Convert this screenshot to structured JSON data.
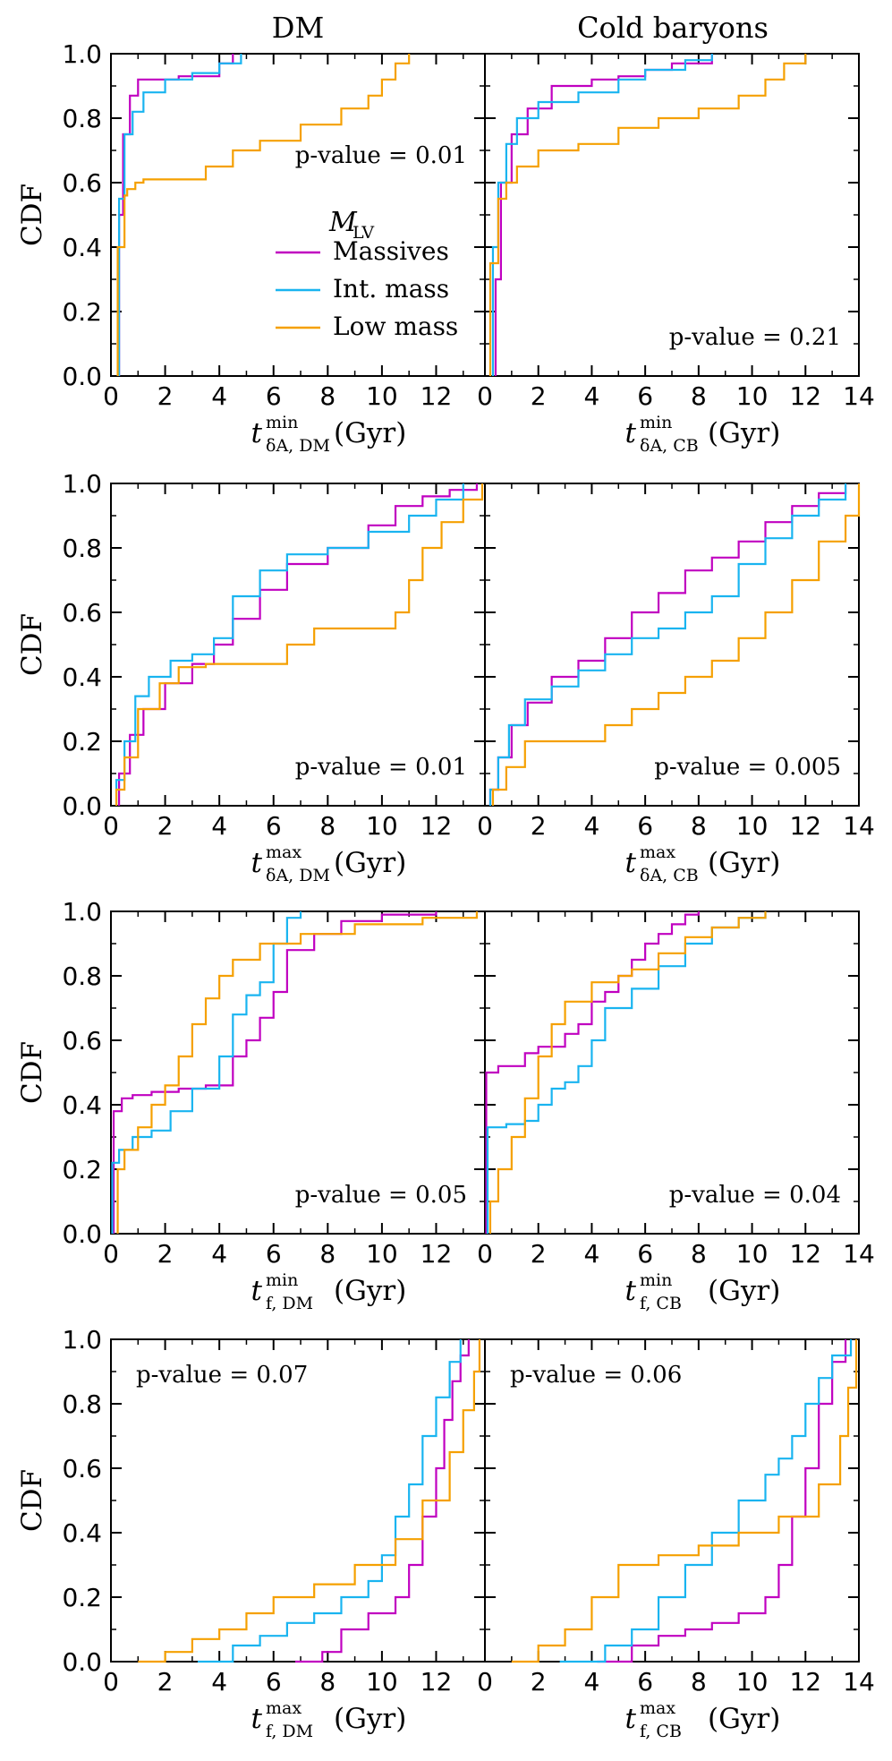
{
  "column_titles": [
    "DM",
    "Cold baryons"
  ],
  "legend": {
    "title": "M",
    "title_sub": "LV",
    "entries": [
      {
        "label": "Massives",
        "color": "#c000c0"
      },
      {
        "label": "Int. mass",
        "color": "#19b4f0"
      },
      {
        "label": "Low mass",
        "color": "#f5a000"
      }
    ]
  },
  "y_ticks": [
    "0.0",
    "0.2",
    "0.4",
    "0.6",
    "0.8",
    "1.0"
  ],
  "x_ticks_left": [
    "0",
    "2",
    "4",
    "6",
    "8",
    "10",
    "12"
  ],
  "x_ticks_right": [
    "0",
    "2",
    "4",
    "6",
    "8",
    "10",
    "12",
    "14"
  ],
  "chart_data": [
    {
      "type": "line",
      "ylabel": "CDF",
      "xlabel": {
        "base": "t",
        "sup": "min",
        "sub": "δA, DM",
        "unit": "(Gyr)"
      },
      "xlim": [
        0,
        13.8
      ],
      "ylim": [
        0,
        1
      ],
      "p_value": "p-value = 0.01",
      "p_pos": "upper-right-mid",
      "series": [
        {
          "name": "Massives",
          "x": [
            0.3,
            0.45,
            0.7,
            1.0,
            1.5,
            2.5,
            4.0,
            4.5
          ],
          "y": [
            0.5,
            0.75,
            0.87,
            0.92,
            0.92,
            0.93,
            0.97,
            1.0
          ]
        },
        {
          "name": "Int. mass",
          "x": [
            0.3,
            0.5,
            0.8,
            1.2,
            2.0,
            3.0,
            4.0,
            4.8
          ],
          "y": [
            0.55,
            0.75,
            0.82,
            0.88,
            0.92,
            0.94,
            0.97,
            1.0
          ]
        },
        {
          "name": "Low mass",
          "x": [
            0.25,
            0.5,
            0.6,
            0.9,
            1.2,
            3.5,
            4.5,
            5.5,
            7.0,
            8.5,
            9.5,
            10.0,
            10.5,
            11.0
          ],
          "y": [
            0.4,
            0.56,
            0.58,
            0.6,
            0.61,
            0.65,
            0.7,
            0.73,
            0.78,
            0.83,
            0.87,
            0.92,
            0.97,
            1.0
          ]
        }
      ]
    },
    {
      "type": "line",
      "ylabel": "",
      "xlabel": {
        "base": "t",
        "sup": "min",
        "sub": "δA, CB",
        "unit": "(Gyr)"
      },
      "xlim": [
        0,
        14
      ],
      "ylim": [
        0,
        1
      ],
      "p_value": "p-value = 0.21",
      "p_pos": "lower-right",
      "series": [
        {
          "name": "Massives",
          "x": [
            0.4,
            0.6,
            1.0,
            1.6,
            2.5,
            4.0,
            5.0,
            6.0,
            7.0,
            8.5
          ],
          "y": [
            0.3,
            0.6,
            0.75,
            0.83,
            0.9,
            0.92,
            0.93,
            0.95,
            0.97,
            1.0
          ]
        },
        {
          "name": "Int. mass",
          "x": [
            0.3,
            0.5,
            0.8,
            1.2,
            2.0,
            3.5,
            5.0,
            6.0,
            7.5,
            8.5
          ],
          "y": [
            0.4,
            0.6,
            0.72,
            0.8,
            0.85,
            0.88,
            0.92,
            0.95,
            0.98,
            1.0
          ]
        },
        {
          "name": "Low mass",
          "x": [
            0.2,
            0.5,
            0.8,
            1.2,
            2.0,
            3.5,
            5.0,
            6.5,
            8.0,
            9.5,
            10.5,
            11.2,
            12.0
          ],
          "y": [
            0.35,
            0.55,
            0.6,
            0.65,
            0.7,
            0.72,
            0.77,
            0.8,
            0.83,
            0.87,
            0.92,
            0.97,
            1.0
          ]
        }
      ]
    },
    {
      "type": "line",
      "ylabel": "CDF",
      "xlabel": {
        "base": "t",
        "sup": "max",
        "sub": "δA, DM",
        "unit": "(Gyr)"
      },
      "xlim": [
        0,
        13.8
      ],
      "ylim": [
        0,
        1
      ],
      "p_value": "p-value = 0.01",
      "p_pos": "lower-right",
      "series": [
        {
          "name": "Massives",
          "x": [
            0.3,
            0.7,
            1.2,
            2.0,
            3.0,
            3.8,
            4.5,
            5.5,
            6.5,
            8.0,
            9.5,
            10.5,
            11.5,
            12.5,
            13.5
          ],
          "y": [
            0.1,
            0.22,
            0.3,
            0.38,
            0.44,
            0.5,
            0.58,
            0.67,
            0.75,
            0.8,
            0.87,
            0.93,
            0.96,
            0.98,
            1.0
          ]
        },
        {
          "name": "Int. mass",
          "x": [
            0.2,
            0.5,
            0.9,
            1.4,
            2.2,
            3.0,
            3.8,
            4.5,
            5.5,
            6.5,
            8.0,
            9.5,
            11.0,
            12.0,
            13.0
          ],
          "y": [
            0.08,
            0.2,
            0.34,
            0.4,
            0.45,
            0.47,
            0.52,
            0.65,
            0.73,
            0.78,
            0.8,
            0.85,
            0.9,
            0.95,
            1.0
          ]
        },
        {
          "name": "Low mass",
          "x": [
            0.2,
            0.5,
            1.0,
            1.8,
            2.5,
            3.5,
            5.5,
            6.5,
            7.5,
            10.5,
            11.0,
            11.5,
            12.2,
            13.0,
            13.7
          ],
          "y": [
            0.05,
            0.15,
            0.3,
            0.38,
            0.43,
            0.44,
            0.44,
            0.5,
            0.55,
            0.6,
            0.7,
            0.8,
            0.88,
            0.95,
            1.0
          ]
        }
      ]
    },
    {
      "type": "line",
      "ylabel": "",
      "xlabel": {
        "base": "t",
        "sup": "max",
        "sub": "δA, CB",
        "unit": "(Gyr)"
      },
      "xlim": [
        0,
        14
      ],
      "ylim": [
        0,
        1
      ],
      "p_value": "p-value = 0.005",
      "p_pos": "lower-right",
      "series": [
        {
          "name": "Massives",
          "x": [
            0.2,
            0.5,
            1.0,
            1.6,
            2.5,
            3.5,
            4.5,
            5.5,
            6.5,
            7.5,
            8.5,
            9.5,
            10.5,
            11.5,
            12.5,
            13.5
          ],
          "y": [
            0.05,
            0.15,
            0.25,
            0.32,
            0.4,
            0.45,
            0.52,
            0.6,
            0.66,
            0.73,
            0.77,
            0.82,
            0.88,
            0.93,
            0.97,
            1.0
          ]
        },
        {
          "name": "Int. mass",
          "x": [
            0.2,
            0.5,
            0.9,
            1.5,
            2.5,
            3.5,
            4.5,
            5.5,
            6.5,
            7.5,
            8.5,
            9.5,
            10.5,
            11.5,
            12.5,
            13.5
          ],
          "y": [
            0.05,
            0.15,
            0.25,
            0.33,
            0.37,
            0.42,
            0.47,
            0.52,
            0.55,
            0.6,
            0.65,
            0.75,
            0.83,
            0.9,
            0.95,
            1.0
          ]
        },
        {
          "name": "Low mass",
          "x": [
            0.3,
            0.8,
            1.5,
            3.5,
            4.5,
            5.5,
            6.5,
            7.5,
            8.5,
            9.5,
            10.5,
            11.5,
            12.5,
            13.5,
            14.0
          ],
          "y": [
            0.05,
            0.12,
            0.2,
            0.2,
            0.25,
            0.3,
            0.35,
            0.4,
            0.45,
            0.52,
            0.6,
            0.7,
            0.82,
            0.9,
            1.0
          ]
        }
      ]
    },
    {
      "type": "line",
      "ylabel": "CDF",
      "xlabel": {
        "base": "t",
        "sup": "min",
        "sub": "f, DM",
        "unit": "(Gyr)"
      },
      "xlim": [
        0,
        13.8
      ],
      "ylim": [
        0,
        1
      ],
      "p_value": "p-value = 0.05",
      "p_pos": "lower-right",
      "series": [
        {
          "name": "Massives",
          "x": [
            0.1,
            0.4,
            0.8,
            1.5,
            2.5,
            3.5,
            4.5,
            5.0,
            5.5,
            6.0,
            6.5,
            7.5,
            8.5,
            10.0,
            12.0
          ],
          "y": [
            0.38,
            0.42,
            0.43,
            0.44,
            0.45,
            0.46,
            0.55,
            0.6,
            0.67,
            0.75,
            0.88,
            0.93,
            0.97,
            0.99,
            1.0
          ]
        },
        {
          "name": "Int. mass",
          "x": [
            0.05,
            0.3,
            0.8,
            1.5,
            2.2,
            3.0,
            4.0,
            4.5,
            5.0,
            5.5,
            6.0,
            6.5,
            7.0
          ],
          "y": [
            0.22,
            0.26,
            0.3,
            0.32,
            0.38,
            0.45,
            0.55,
            0.68,
            0.74,
            0.78,
            0.9,
            0.98,
            1.0
          ]
        },
        {
          "name": "Low mass",
          "x": [
            0.25,
            0.5,
            1.0,
            1.5,
            2.0,
            2.5,
            3.0,
            3.5,
            4.0,
            4.5,
            5.5,
            7.0,
            9.0,
            11.5,
            13.5
          ],
          "y": [
            0.2,
            0.26,
            0.33,
            0.4,
            0.46,
            0.55,
            0.65,
            0.73,
            0.8,
            0.85,
            0.9,
            0.93,
            0.96,
            0.98,
            1.0
          ]
        }
      ]
    },
    {
      "type": "line",
      "ylabel": "",
      "xlabel": {
        "base": "t",
        "sup": "min",
        "sub": "f, CB",
        "unit": "(Gyr)"
      },
      "xlim": [
        0,
        14
      ],
      "ylim": [
        0,
        1
      ],
      "p_value": "p-value = 0.04",
      "p_pos": "lower-right",
      "series": [
        {
          "name": "Massives",
          "x": [
            0.05,
            0.5,
            1.5,
            2.0,
            3.0,
            3.5,
            4.0,
            4.5,
            5.0,
            5.5,
            6.0,
            6.5,
            7.0,
            7.5,
            8.0
          ],
          "y": [
            0.5,
            0.52,
            0.56,
            0.58,
            0.62,
            0.65,
            0.72,
            0.75,
            0.8,
            0.85,
            0.9,
            0.93,
            0.96,
            0.99,
            1.0
          ]
        },
        {
          "name": "Int. mass",
          "x": [
            0.1,
            0.8,
            1.5,
            2.0,
            2.5,
            3.0,
            3.5,
            4.0,
            4.5,
            5.5,
            6.5,
            7.5,
            8.5,
            9.5,
            10.5
          ],
          "y": [
            0.33,
            0.34,
            0.35,
            0.4,
            0.45,
            0.47,
            0.52,
            0.6,
            0.7,
            0.76,
            0.83,
            0.9,
            0.95,
            0.98,
            1.0
          ]
        },
        {
          "name": "Low mass",
          "x": [
            0.2,
            0.5,
            1.0,
            1.5,
            2.0,
            2.5,
            3.0,
            4.0,
            5.0,
            5.5,
            6.5,
            7.5,
            8.5,
            9.5,
            10.5
          ],
          "y": [
            0.1,
            0.2,
            0.3,
            0.42,
            0.55,
            0.65,
            0.72,
            0.78,
            0.8,
            0.82,
            0.87,
            0.92,
            0.95,
            0.98,
            1.0
          ]
        }
      ]
    },
    {
      "type": "line",
      "ylabel": "CDF",
      "xlabel": {
        "base": "t",
        "sup": "max",
        "sub": "f, DM",
        "unit": "(Gyr)"
      },
      "xlim": [
        0,
        13.8
      ],
      "ylim": [
        0,
        1
      ],
      "p_value": "p-value = 0.07",
      "p_pos": "upper-left",
      "series": [
        {
          "name": "Massives",
          "x": [
            6.8,
            7.8,
            8.5,
            9.5,
            10.5,
            11.0,
            11.5,
            12.0,
            12.3,
            12.6,
            12.9,
            13.2
          ],
          "y": [
            0.0,
            0.03,
            0.1,
            0.15,
            0.2,
            0.3,
            0.45,
            0.6,
            0.75,
            0.87,
            0.95,
            1.0
          ]
        },
        {
          "name": "Int. mass",
          "x": [
            3.2,
            4.5,
            5.5,
            6.5,
            7.5,
            8.5,
            9.5,
            10.0,
            10.5,
            11.0,
            11.5,
            12.0,
            12.5,
            12.9
          ],
          "y": [
            0.0,
            0.05,
            0.08,
            0.12,
            0.15,
            0.2,
            0.25,
            0.33,
            0.45,
            0.55,
            0.7,
            0.82,
            0.93,
            1.0
          ]
        },
        {
          "name": "Low mass",
          "x": [
            1.0,
            2.0,
            3.0,
            4.0,
            5.0,
            6.0,
            7.5,
            9.0,
            10.5,
            11.5,
            12.5,
            13.0,
            13.4,
            13.6
          ],
          "y": [
            0.0,
            0.03,
            0.07,
            0.1,
            0.15,
            0.2,
            0.24,
            0.3,
            0.38,
            0.5,
            0.65,
            0.78,
            0.9,
            1.0
          ]
        }
      ]
    },
    {
      "type": "line",
      "ylabel": "",
      "xlabel": {
        "base": "t",
        "sup": "max",
        "sub": "f, CB",
        "unit": "(Gyr)"
      },
      "xlim": [
        0,
        14
      ],
      "ylim": [
        0,
        1
      ],
      "p_value": "p-value = 0.06",
      "p_pos": "upper-left",
      "series": [
        {
          "name": "Massives",
          "x": [
            4.2,
            5.5,
            6.5,
            7.5,
            8.5,
            9.5,
            10.5,
            11.0,
            11.5,
            12.0,
            12.5,
            13.0,
            13.5
          ],
          "y": [
            0.0,
            0.05,
            0.08,
            0.1,
            0.12,
            0.15,
            0.2,
            0.3,
            0.45,
            0.6,
            0.8,
            0.93,
            1.0
          ]
        },
        {
          "name": "Int. mass",
          "x": [
            2.8,
            4.5,
            5.5,
            6.5,
            7.5,
            8.5,
            9.5,
            10.5,
            11.0,
            11.5,
            12.0,
            12.5,
            13.0,
            13.7
          ],
          "y": [
            0.0,
            0.05,
            0.1,
            0.2,
            0.3,
            0.4,
            0.5,
            0.58,
            0.63,
            0.7,
            0.8,
            0.88,
            0.95,
            1.0
          ]
        },
        {
          "name": "Low mass",
          "x": [
            1.0,
            2.0,
            3.0,
            4.0,
            5.0,
            6.5,
            8.0,
            9.5,
            11.0,
            12.5,
            13.3,
            13.6,
            13.9
          ],
          "y": [
            0.0,
            0.05,
            0.1,
            0.2,
            0.3,
            0.33,
            0.36,
            0.4,
            0.45,
            0.55,
            0.7,
            0.85,
            1.0
          ]
        }
      ]
    }
  ]
}
